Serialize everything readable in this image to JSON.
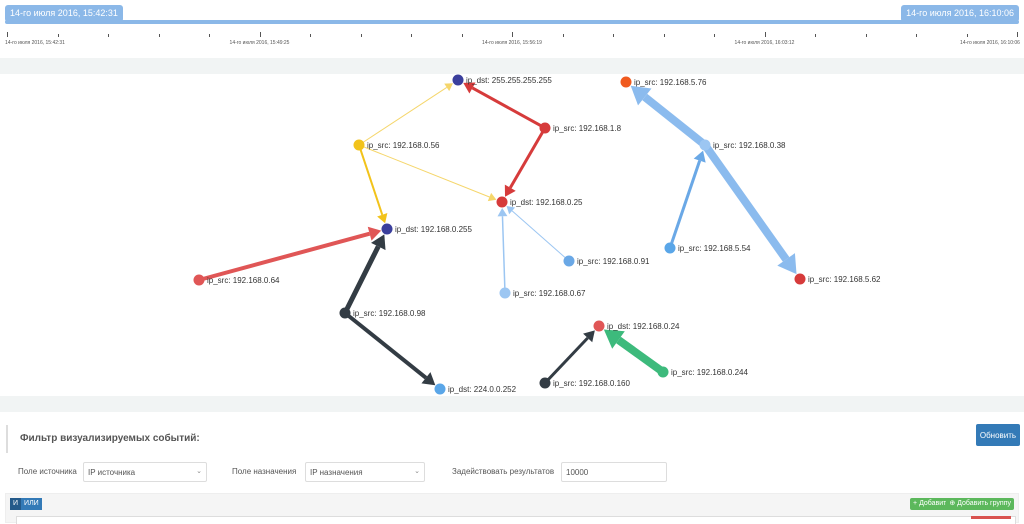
{
  "timeline": {
    "start_handle": "14-го июля 2016, 15:42:31",
    "end_handle": "14-го июля 2016, 16:10:06",
    "tick_labels": [
      "14-го июля 2016, 15:42:31",
      "14-го июля 2016, 15:49:25",
      "14-го июля 2016, 15:56:19",
      "14-го июля 2016, 16:03:12",
      "14-го июля 2016, 16:10:06"
    ]
  },
  "graph": {
    "nodes": [
      {
        "id": "d255",
        "label": "ip_dst: 255.255.255.255",
        "color": "#3b3f9c"
      },
      {
        "id": "s18",
        "label": "ip_src: 192.168.1.8",
        "color": "#d63b3b"
      },
      {
        "id": "s056",
        "label": "ip_src: 192.168.0.56",
        "color": "#f2c31b"
      },
      {
        "id": "d025",
        "label": "ip_dst: 192.168.0.25",
        "color": "#d63b3b"
      },
      {
        "id": "d0255",
        "label": "ip_dst: 192.168.0.255",
        "color": "#3b3f9c"
      },
      {
        "id": "s091",
        "label": "ip_src: 192.168.0.91",
        "color": "#6aa8e6"
      },
      {
        "id": "s064",
        "label": "ip_src: 192.168.0.64",
        "color": "#e05656"
      },
      {
        "id": "s067",
        "label": "ip_src: 192.168.0.67",
        "color": "#9cc6f2"
      },
      {
        "id": "s098",
        "label": "ip_src: 192.168.0.98",
        "color": "#333c44"
      },
      {
        "id": "d224",
        "label": "ip_dst: 224.0.0.252",
        "color": "#5aa6e8"
      },
      {
        "id": "d024",
        "label": "ip_dst: 192.168.0.24",
        "color": "#e05656"
      },
      {
        "id": "s0160",
        "label": "ip_src: 192.168.0.160",
        "color": "#333c44"
      },
      {
        "id": "s0244",
        "label": "ip_src: 192.168.0.244",
        "color": "#3dba7c"
      },
      {
        "id": "s576",
        "label": "ip_src: 192.168.5.76",
        "color": "#f05a1e"
      },
      {
        "id": "n038",
        "label": "ip_src: 192.168.0.38",
        "color": "#9cc6f2"
      },
      {
        "id": "s554",
        "label": "ip_src: 192.168.5.54",
        "color": "#5aa6e8"
      },
      {
        "id": "s562",
        "label": "ip_src: 192.168.5.62",
        "color": "#d63b3b"
      }
    ],
    "edges": [
      {
        "from": "s18",
        "to": "d255",
        "color": "#d63b3b",
        "weight": 3
      },
      {
        "from": "s18",
        "to": "d025",
        "color": "#d63b3b",
        "weight": 3
      },
      {
        "from": "s056",
        "to": "d255",
        "color": "#f5d66b",
        "weight": 1
      },
      {
        "from": "s056",
        "to": "d025",
        "color": "#f5d66b",
        "weight": 1
      },
      {
        "from": "s056",
        "to": "d0255",
        "color": "#f2c31b",
        "weight": 2
      },
      {
        "from": "s064",
        "to": "d0255",
        "color": "#e05656",
        "weight": 4
      },
      {
        "from": "s098",
        "to": "d0255",
        "color": "#333c44",
        "weight": 5
      },
      {
        "from": "s098",
        "to": "d224",
        "color": "#333c44",
        "weight": 4
      },
      {
        "from": "s091",
        "to": "d025",
        "color": "#9cc6f2",
        "weight": 1
      },
      {
        "from": "s067",
        "to": "d025",
        "color": "#9cc6f2",
        "weight": 1.5
      },
      {
        "from": "s0160",
        "to": "d024",
        "color": "#333c44",
        "weight": 3
      },
      {
        "from": "s0244",
        "to": "d024",
        "color": "#3dba7c",
        "weight": 8
      },
      {
        "from": "s554",
        "to": "n038",
        "color": "#6aa8e6",
        "weight": 3
      },
      {
        "from": "n038",
        "to": "s576",
        "color": "#8bbbee",
        "weight": 8
      },
      {
        "from": "n038",
        "to": "s562",
        "color": "#8bbbee",
        "weight": 8
      }
    ]
  },
  "filter": {
    "title": "Фильтр визуализируемых событий:",
    "refresh_button": "Обновить",
    "source_label": "Поле источника",
    "source_value": "IP источника",
    "dest_label": "Поле назначения",
    "dest_value": "IP назначения",
    "results_label": "Задействовать результатов",
    "results_value": "10000",
    "and_label": "И",
    "or_label": "ИЛИ",
    "add_label": "+ Добавить",
    "add_group_label": "⊕ Добавить группу"
  }
}
